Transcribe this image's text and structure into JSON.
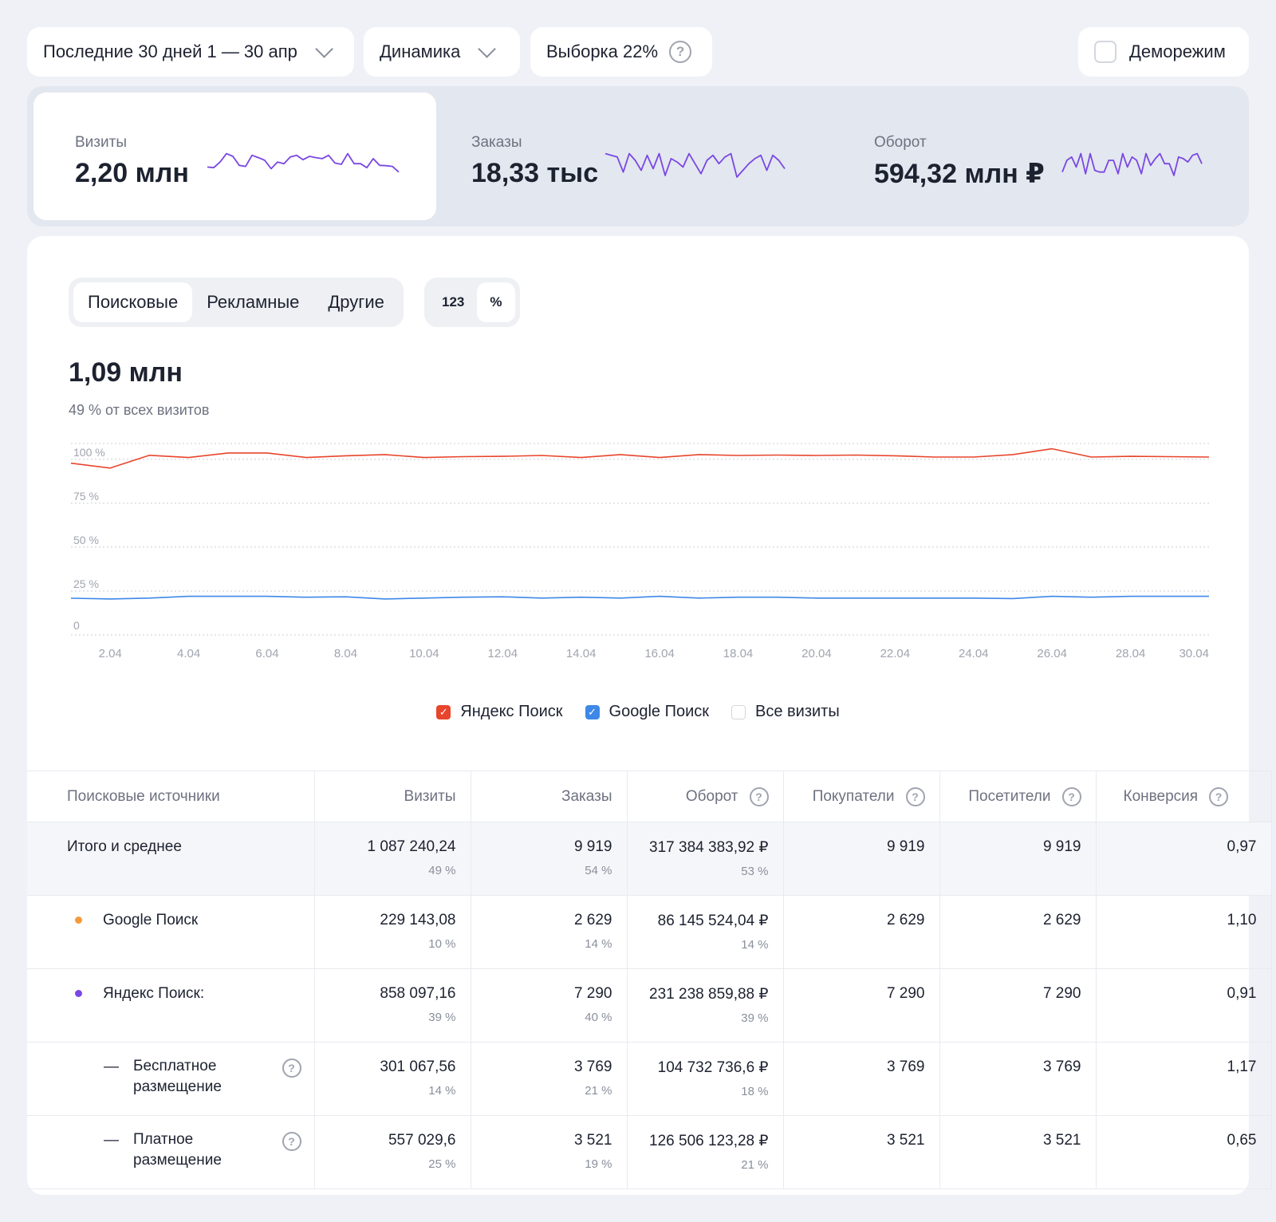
{
  "filters": {
    "period": "Последние 30 дней 1 — 30 апр",
    "mode": "Динамика",
    "sample": "Выборка 22%",
    "help_glyph": "?",
    "demo": "Деморежим"
  },
  "kpis": [
    {
      "label": "Визиты",
      "value": "2,20 млн",
      "active": true,
      "spark": [
        0.7,
        0.72,
        0.55,
        0.3,
        0.38,
        0.65,
        0.68,
        0.35,
        0.42,
        0.5,
        0.75,
        0.55,
        0.6,
        0.4,
        0.35,
        0.48,
        0.38,
        0.42,
        0.45,
        0.35,
        0.58,
        0.62,
        0.3,
        0.6,
        0.6,
        0.72,
        0.45,
        0.65,
        0.66,
        0.68,
        0.85
      ]
    },
    {
      "label": "Заказы",
      "value": "18,33 тыс",
      "active": false,
      "spark": [
        0.3,
        0.35,
        0.4,
        0.85,
        0.3,
        0.5,
        0.8,
        0.35,
        0.75,
        0.3,
        0.95,
        0.45,
        0.55,
        0.7,
        0.3,
        0.6,
        0.9,
        0.5,
        0.35,
        0.6,
        0.4,
        0.3,
        1.0,
        0.8,
        0.6,
        0.45,
        0.35,
        0.8,
        0.35,
        0.5,
        0.75
      ]
    },
    {
      "label": "Оборот",
      "value": "594,32 млн ₽",
      "active": false,
      "spark": [
        0.85,
        0.5,
        0.4,
        0.7,
        0.3,
        0.9,
        0.3,
        0.8,
        0.85,
        0.85,
        0.5,
        0.5,
        0.9,
        0.3,
        0.7,
        0.4,
        0.5,
        0.9,
        0.3,
        0.65,
        0.45,
        0.3,
        0.6,
        0.6,
        0.95,
        0.4,
        0.45,
        0.55,
        0.35,
        0.3,
        0.6
      ]
    }
  ],
  "tabs": {
    "sources": [
      "Поисковые",
      "Рекламные",
      "Другие"
    ],
    "active_source": 0,
    "units": [
      "123",
      "%"
    ],
    "active_unit": 1
  },
  "summary": {
    "value": "1,09 млн",
    "note": "49 % от всех визитов"
  },
  "chart_data": {
    "type": "line",
    "x": [
      "1.04",
      "2.04",
      "3.04",
      "4.04",
      "5.04",
      "6.04",
      "7.04",
      "8.04",
      "9.04",
      "10.04",
      "11.04",
      "12.04",
      "13.04",
      "14.04",
      "15.04",
      "16.04",
      "17.04",
      "18.04",
      "19.04",
      "20.04",
      "21.04",
      "22.04",
      "23.04",
      "24.04",
      "25.04",
      "26.04",
      "27.04",
      "28.04",
      "29.04",
      "30.04"
    ],
    "x_ticks": [
      "2.04",
      "4.04",
      "6.04",
      "8.04",
      "10.04",
      "12.04",
      "14.04",
      "16.04",
      "18.04",
      "20.04",
      "22.04",
      "24.04",
      "26.04",
      "28.04",
      "30.04"
    ],
    "y_ticks": [
      "100 %",
      "75 %",
      "50 %",
      "25 %",
      "0"
    ],
    "y_tick_values": [
      100,
      75,
      50,
      25,
      0
    ],
    "ylim": [
      0,
      109
    ],
    "series": [
      {
        "name": "Яндекс Поиск",
        "color": "#e8452c",
        "values": [
          97.8,
          95,
          102.3,
          101,
          103.6,
          103.6,
          101,
          102,
          102.7,
          101,
          101.5,
          101.7,
          102.2,
          101,
          102.7,
          101,
          102.7,
          102.2,
          102.4,
          102.2,
          102.4,
          102,
          101.3,
          101.3,
          102.7,
          106,
          101.3,
          101.7,
          101.5,
          101.3
        ]
      },
      {
        "name": "Google Поиск",
        "color": "#3e88e8",
        "values": [
          20.9,
          20.5,
          21,
          22,
          22,
          22,
          21.5,
          21.7,
          20.5,
          21,
          21.5,
          21.7,
          21,
          21.5,
          21,
          22,
          21,
          21.5,
          21.5,
          21,
          21,
          21,
          21,
          21,
          20.7,
          22,
          21.5,
          22,
          22,
          22
        ]
      }
    ]
  },
  "legend": [
    {
      "label": "Яндекс Поиск",
      "checked": true,
      "color": "#e8452c"
    },
    {
      "label": "Google  Поиск",
      "checked": true,
      "color": "#3e88e8"
    },
    {
      "label": "Все визиты",
      "checked": false,
      "color": "#d4d7de"
    }
  ],
  "table": {
    "headers": [
      "Поисковые источники",
      "Визиты",
      "Заказы",
      "Оборот",
      "Покупатели",
      "Посетители",
      "Конверсия"
    ],
    "rows": [
      {
        "kind": "total",
        "name": "Итого и среднее",
        "cells": [
          [
            "1 087 240,24",
            "49 %"
          ],
          [
            "9 919",
            "54 %"
          ],
          [
            "317 384 383,92 ₽",
            "53 %"
          ],
          [
            "9 919",
            ""
          ],
          [
            "9 919",
            ""
          ],
          [
            "0,97",
            ""
          ]
        ]
      },
      {
        "kind": "source",
        "dot": "#f59a3c",
        "name": "Google  Поиск",
        "cells": [
          [
            "229 143,08",
            "10 %"
          ],
          [
            "2 629",
            "14 %"
          ],
          [
            "86 145 524,04 ₽",
            "14 %"
          ],
          [
            "2 629",
            ""
          ],
          [
            "2 629",
            ""
          ],
          [
            "1,10",
            ""
          ]
        ]
      },
      {
        "kind": "source",
        "dot": "#7a47e3",
        "name": "Яндекс Поиск:",
        "cells": [
          [
            "858 097,16",
            "39 %"
          ],
          [
            "7 290",
            "40 %"
          ],
          [
            "231 238 859,88 ₽",
            "39 %"
          ],
          [
            "7 290",
            ""
          ],
          [
            "7 290",
            ""
          ],
          [
            "0,91",
            ""
          ]
        ]
      },
      {
        "kind": "sub",
        "dash": "—",
        "name1": "Бесплатное",
        "name2": "размещение",
        "cells": [
          [
            "301 067,56",
            "14 %"
          ],
          [
            "3 769",
            "21 %"
          ],
          [
            "104 732 736,6 ₽",
            "18 %"
          ],
          [
            "3 769",
            ""
          ],
          [
            "3 769",
            ""
          ],
          [
            "1,17",
            ""
          ]
        ]
      },
      {
        "kind": "sub",
        "dash": "—",
        "name1": "Платное",
        "name2": "размещение",
        "cells": [
          [
            "557 029,6",
            "25 %"
          ],
          [
            "3 521",
            "19 %"
          ],
          [
            "126 506 123,28 ₽",
            "21 %"
          ],
          [
            "3 521",
            ""
          ],
          [
            "3 521",
            ""
          ],
          [
            "0,65",
            ""
          ]
        ]
      }
    ]
  }
}
